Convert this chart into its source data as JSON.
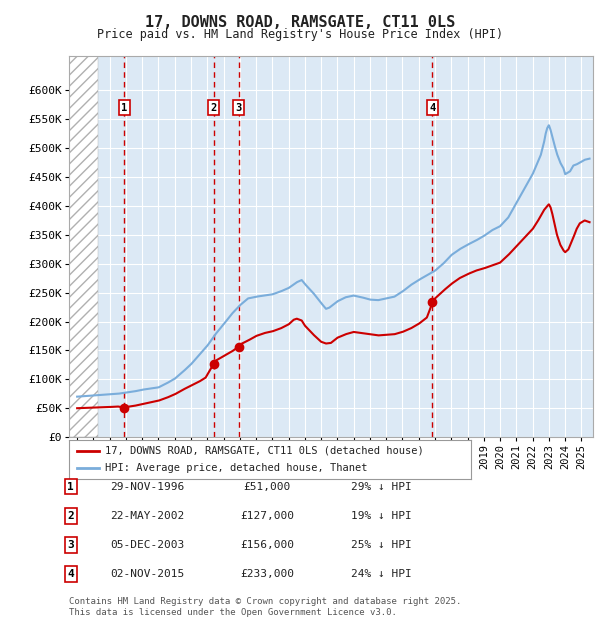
{
  "title": "17, DOWNS ROAD, RAMSGATE, CT11 0LS",
  "subtitle": "Price paid vs. HM Land Registry's House Price Index (HPI)",
  "ylim": [
    0,
    660000
  ],
  "yticks": [
    0,
    50000,
    100000,
    150000,
    200000,
    250000,
    300000,
    350000,
    400000,
    450000,
    500000,
    550000,
    600000
  ],
  "ytick_labels": [
    "£0",
    "£50K",
    "£100K",
    "£150K",
    "£200K",
    "£250K",
    "£300K",
    "£350K",
    "£400K",
    "£450K",
    "£500K",
    "£550K",
    "£600K"
  ],
  "xlim_start": 1993.5,
  "xlim_end": 2025.7,
  "background_color": "#ffffff",
  "plot_bg_color": "#dce9f5",
  "grid_color": "#ffffff",
  "line_color_red": "#cc0000",
  "line_color_blue": "#7aaddb",
  "transaction_dates": [
    1996.91,
    2002.39,
    2003.92,
    2015.84
  ],
  "transaction_prices": [
    51000,
    127000,
    156000,
    233000
  ],
  "transaction_labels": [
    "1",
    "2",
    "3",
    "4"
  ],
  "legend_red_label": "17, DOWNS ROAD, RAMSGATE, CT11 0LS (detached house)",
  "legend_blue_label": "HPI: Average price, detached house, Thanet",
  "table_rows": [
    [
      "1",
      "29-NOV-1996",
      "£51,000",
      "29% ↓ HPI"
    ],
    [
      "2",
      "22-MAY-2002",
      "£127,000",
      "19% ↓ HPI"
    ],
    [
      "3",
      "05-DEC-2003",
      "£156,000",
      "25% ↓ HPI"
    ],
    [
      "4",
      "02-NOV-2015",
      "£233,000",
      "24% ↓ HPI"
    ]
  ],
  "footnote": "Contains HM Land Registry data © Crown copyright and database right 2025.\nThis data is licensed under the Open Government Licence v3.0.",
  "sale_marker_color": "#cc0000",
  "dashed_line_color": "#cc0000",
  "hatch_end": 1995.3
}
